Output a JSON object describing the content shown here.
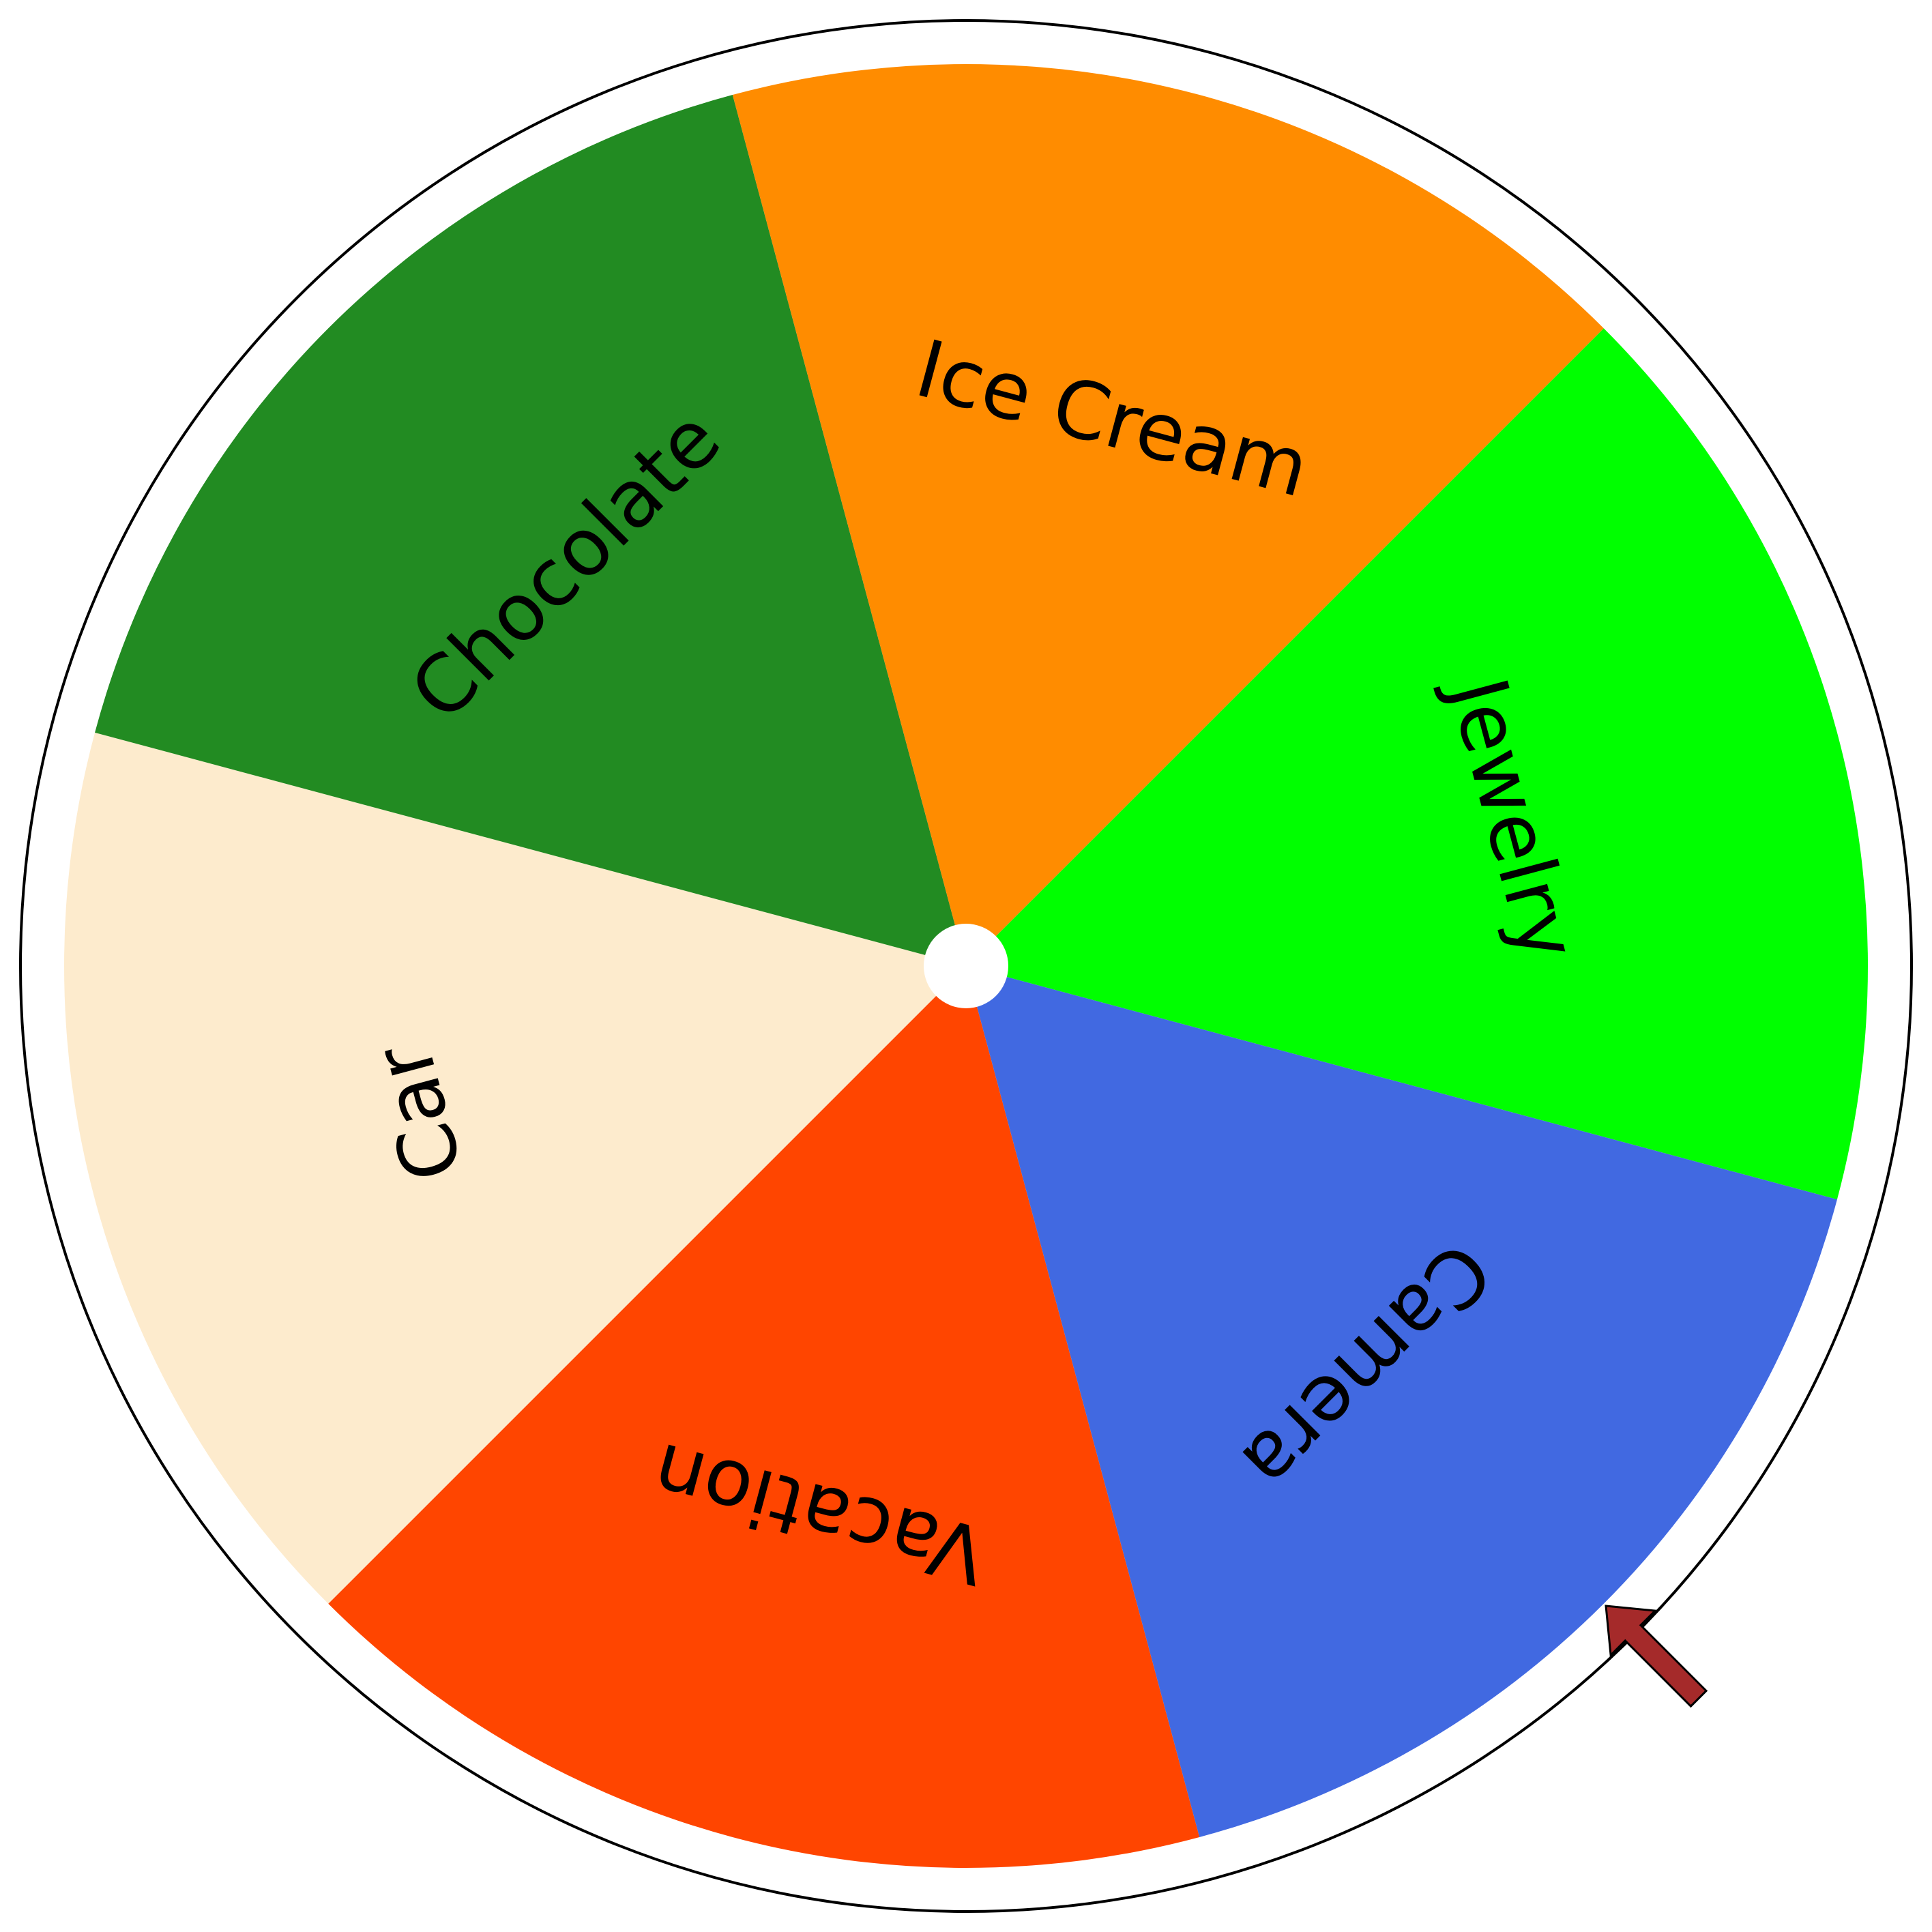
{
  "wheel": {
    "rim_color": "#ffffff",
    "rim_stroke_color": "#000000",
    "hub_color": "#ffffff",
    "segments": [
      {
        "label": "Jewelry",
        "color": "#00ff00"
      },
      {
        "label": "Camera",
        "color": "#4169e1"
      },
      {
        "label": "Vacation",
        "color": "#ff4500"
      },
      {
        "label": "Car",
        "color": "#fdebcd"
      },
      {
        "label": "Chocolate",
        "color": "#228b22"
      },
      {
        "label": "Ice Cream",
        "color": "#ff8c00"
      }
    ]
  },
  "pointer": {
    "icon": "arrow-icon",
    "color": "#a52a2a",
    "stroke_color": "#000000"
  }
}
